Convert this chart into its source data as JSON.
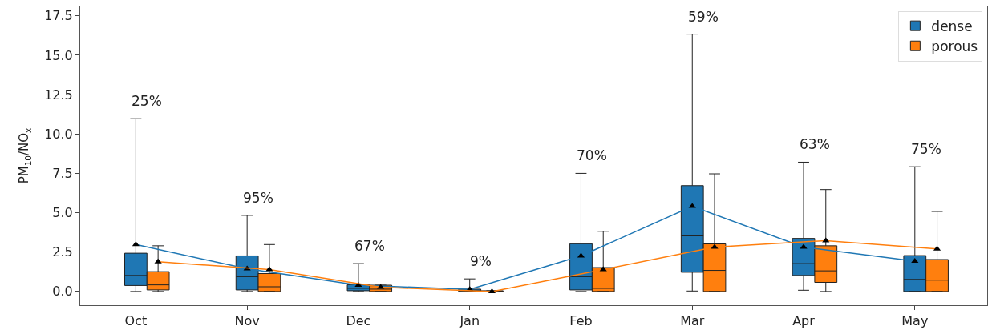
{
  "chart_data": {
    "type": "box",
    "categories": [
      "Oct",
      "Nov",
      "Dec",
      "Jan",
      "Feb",
      "Mar",
      "Apr",
      "May"
    ],
    "ylabel": "PM$_{10}$/NO$_{x}$",
    "ylim": [
      -0.87,
      18.1
    ],
    "yticks": [
      {
        "value": 0,
        "label": "0.0"
      },
      {
        "value": 2.5,
        "label": "2.5"
      },
      {
        "value": 5,
        "label": "5.0"
      },
      {
        "value": 7.5,
        "label": "7.5"
      },
      {
        "value": 10,
        "label": "10.0"
      },
      {
        "value": 12.5,
        "label": "12.5"
      },
      {
        "value": 15,
        "label": "15.0"
      },
      {
        "value": 17.5,
        "label": "17.5"
      }
    ],
    "legend": "top right",
    "series": [
      {
        "name": "dense",
        "color": "#1f77b4",
        "boxes": [
          {
            "low": 0,
            "q1": 0.38,
            "median": 1.02,
            "q3": 2.43,
            "high": 10.97
          },
          {
            "low": 0,
            "q1": 0.1,
            "median": 0.94,
            "q3": 2.26,
            "high": 4.83
          },
          {
            "low": 0,
            "q1": 0.05,
            "median": 0.2,
            "q3": 0.43,
            "high": 1.77
          },
          {
            "low": 0,
            "q1": 0,
            "median": 0.05,
            "q3": 0.15,
            "high": 0.8
          },
          {
            "low": 0,
            "q1": 0.1,
            "median": 0.94,
            "q3": 3.03,
            "high": 7.5
          },
          {
            "low": 0.03,
            "q1": 1.22,
            "median": 3.53,
            "q3": 6.72,
            "high": 16.34
          },
          {
            "low": 0.08,
            "q1": 1.02,
            "median": 1.77,
            "q3": 3.37,
            "high": 8.21
          },
          {
            "low": 0,
            "q1": 0,
            "median": 0.77,
            "q3": 2.28,
            "high": 7.92
          }
        ]
      },
      {
        "name": "porous",
        "color": "#ff7f0e",
        "boxes": [
          {
            "low": 0,
            "q1": 0.1,
            "median": 0.42,
            "q3": 1.26,
            "high": 2.9
          },
          {
            "low": 0,
            "q1": 0,
            "median": 0.3,
            "q3": 1.14,
            "high": 2.98
          },
          {
            "low": 0,
            "q1": 0,
            "median": 0.15,
            "q3": 0.4,
            "high": 0.4
          },
          {
            "low": 0,
            "q1": 0,
            "median": 0,
            "q3": 0.05,
            "high": 0.05
          },
          {
            "low": 0,
            "q1": 0,
            "median": 0.2,
            "q3": 1.52,
            "high": 3.82
          },
          {
            "low": 0,
            "q1": 0,
            "median": 1.34,
            "q3": 3.02,
            "high": 7.47
          },
          {
            "low": 0,
            "q1": 0.58,
            "median": 1.31,
            "q3": 2.9,
            "high": 6.47
          },
          {
            "low": 0,
            "q1": 0,
            "median": 0.72,
            "q3": 2.03,
            "high": 5.08
          }
        ]
      },
      {
        "type": "line",
        "color": "#1f77b4",
        "marker": "triangle",
        "values": [
          2.98,
          1.44,
          0.4,
          0.13,
          2.26,
          5.41,
          2.82,
          1.93
        ]
      },
      {
        "type": "line",
        "color": "#ff7f0e",
        "marker": "triangle",
        "values": [
          1.89,
          1.39,
          0.27,
          0,
          1.39,
          2.82,
          3.23,
          2.7
        ]
      }
    ],
    "annotations": [
      "25%",
      "95%",
      "67%",
      "9%",
      "70%",
      "59%",
      "63%",
      "75%"
    ]
  }
}
